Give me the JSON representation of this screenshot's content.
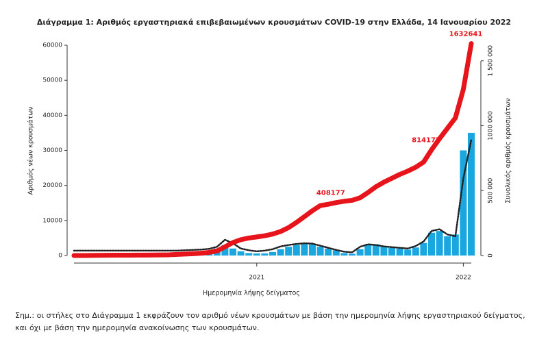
{
  "chart_data": {
    "type": "bar-line",
    "title": "Διάγραμμα 1: Αριθμός εργαστηριακά επιβεβαιωμένων κρουσμάτων COVID-19 στην Ελλάδα, 14 Ιανουαρίου 2022",
    "xlabel": "Ημερομηνία λήψης δείγματος",
    "ylabel": "Αριθμός νέων κρουσμάτων",
    "y2label": "Συνολικός αριθμός κρουσμάτων",
    "note": "Σημ.: οι στήλες στο Διάγραμμα 1 εκφράζουν τον αριθμό νέων κρουσμάτων με βάση την ημερομηνία λήψης εργαστηριακού δείγματος, και όχι με βάση την ημερομηνία ανακοίνωσης των κρουσμάτων.",
    "categories": [
      null,
      null,
      null,
      null,
      null,
      null,
      null,
      null,
      null,
      null,
      null,
      null,
      null,
      null,
      null,
      null,
      null,
      null,
      null,
      null,
      null,
      null,
      null,
      "2021",
      null,
      null,
      null,
      null,
      null,
      null,
      null,
      null,
      null,
      null,
      null,
      null,
      null,
      null,
      null,
      null,
      null,
      null,
      null,
      null,
      null,
      null,
      null,
      null,
      null,
      "2022",
      null
    ],
    "series": [
      {
        "type": "bar",
        "color": "#1aa7e0",
        "values": [
          0,
          20,
          60,
          80,
          50,
          20,
          15,
          10,
          10,
          20,
          30,
          50,
          150,
          250,
          200,
          300,
          350,
          600,
          2000,
          3000,
          2000,
          1200,
          700,
          600,
          600,
          1000,
          1800,
          2500,
          3000,
          3500,
          3200,
          2500,
          2000,
          1500,
          700,
          500,
          1800,
          3000,
          3200,
          2500,
          2200,
          2000,
          1700,
          2300,
          3600,
          6500,
          7000,
          5500,
          6000,
          30000,
          35000
        ]
      },
      {
        "type": "line",
        "color": "#222222",
        "values": [
          1400,
          1400,
          1400,
          1400,
          1400,
          1400,
          1400,
          1400,
          1400,
          1400,
          1400,
          1400,
          1400,
          1400,
          1500,
          1600,
          1700,
          1900,
          2500,
          4500,
          3500,
          2000,
          1500,
          1200,
          1400,
          1800,
          2600,
          3000,
          3300,
          3500,
          3400,
          2800,
          2200,
          1600,
          1100,
          900,
          2500,
          3200,
          3000,
          2600,
          2400,
          2200,
          2000,
          2700,
          4000,
          7000,
          7500,
          6000,
          5500,
          22000,
          33000
        ]
      },
      {
        "type": "line",
        "axis": "y2",
        "color": "#e8141b",
        "labeled": [
          33,
          45,
          50
        ],
        "values": [
          0,
          10,
          400,
          1500,
          2200,
          2600,
          2800,
          2900,
          3100,
          3300,
          3700,
          4300,
          5600,
          8800,
          11000,
          14000,
          18000,
          24000,
          35000,
          67000,
          100000,
          122000,
          135000,
          143000,
          152000,
          165000,
          185000,
          215000,
          255000,
          300000,
          345000,
          385000,
          395000,
          408177,
          418000,
          425000,
          445000,
          485000,
          530000,
          565000,
          595000,
          625000,
          650000,
          680000,
          720000,
          814177,
          900000,
          980000,
          1060000,
          1280000,
          1632641
        ]
      }
    ],
    "ylim": [
      0,
      60000
    ],
    "yticks": [
      0,
      10000,
      20000,
      30000,
      40000,
      50000,
      60000
    ],
    "y2lim": [
      0,
      1620000
    ],
    "y2ticks": [
      0,
      {
        "value": 500000,
        "label": "500 000"
      },
      {
        "value": 1000000,
        "label": "1000 000"
      },
      {
        "value": 1500000,
        "label": "1 500 000"
      }
    ]
  }
}
